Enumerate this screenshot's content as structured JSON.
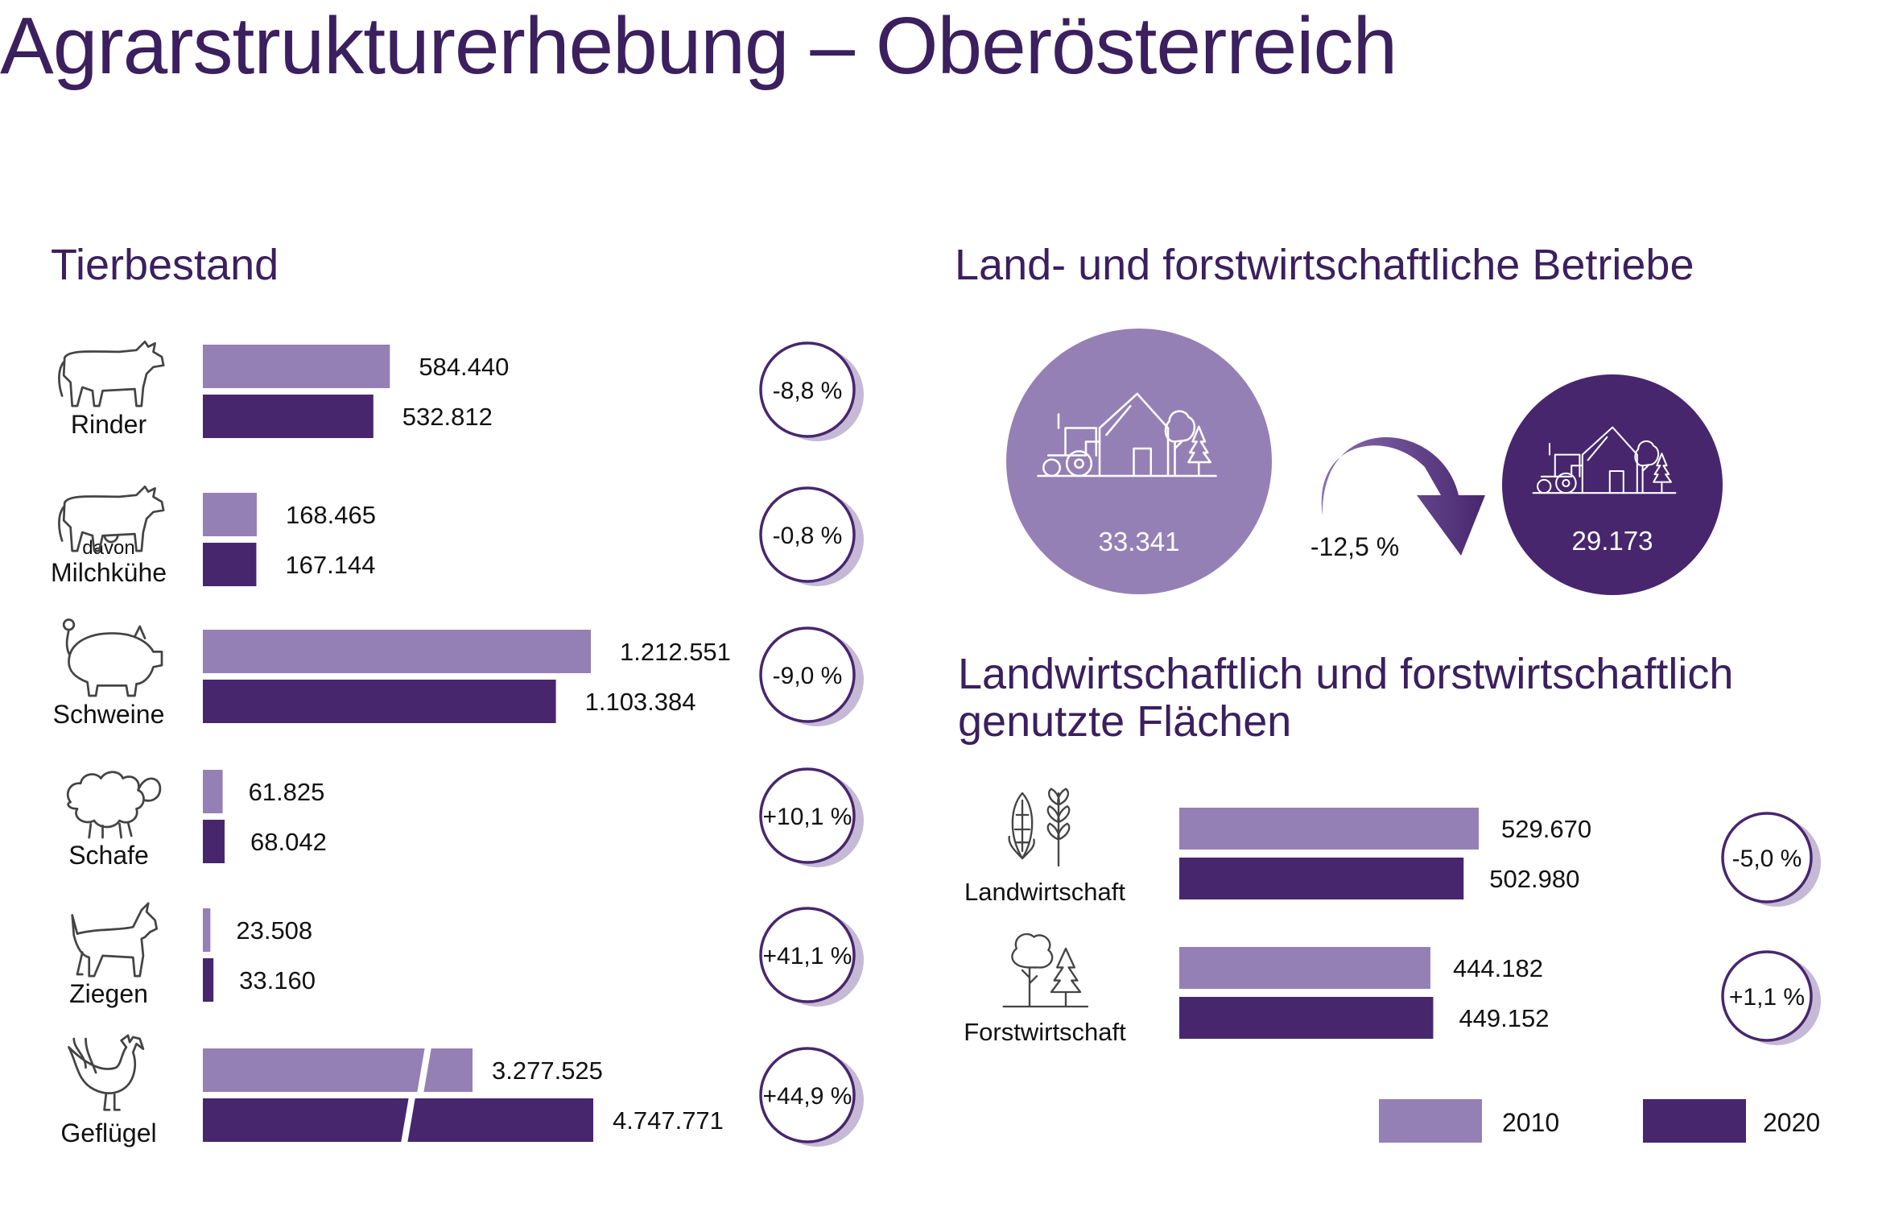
{
  "title": "Agrarstrukturerhebung – Oberösterreich",
  "colors": {
    "y2010": "#9580b5",
    "y2020": "#47266e",
    "text": "#111111",
    "title": "#3b1f5e",
    "icon": "#444444"
  },
  "chart_data": [
    {
      "type": "bar",
      "title": "Tierbestand",
      "orientation": "horizontal",
      "categories": [
        "Rinder",
        "davon Milchkühe",
        "Schweine",
        "Schafe",
        "Ziegen",
        "Geflügel"
      ],
      "category_labels": [
        {
          "main": "Rinder",
          "sub": ""
        },
        {
          "main": "Milchkühe",
          "sub": "davon"
        },
        {
          "main": "Schweine",
          "sub": ""
        },
        {
          "main": "Schafe",
          "sub": ""
        },
        {
          "main": "Ziegen",
          "sub": ""
        },
        {
          "main": "Geflügel",
          "sub": ""
        }
      ],
      "icons": [
        "cow-icon",
        "dairy-cow-icon",
        "pig-icon",
        "sheep-icon",
        "goat-icon",
        "chicken-icon"
      ],
      "series": [
        {
          "name": "2010",
          "values": [
            584440,
            168465,
            1212551,
            61825,
            23508,
            3277525
          ],
          "labels": [
            "584.440",
            "168.465",
            "1.212.551",
            "61.825",
            "23.508",
            "3.277.525"
          ]
        },
        {
          "name": "2020",
          "values": [
            532812,
            167144,
            1103384,
            68042,
            33160,
            4747771
          ],
          "labels": [
            "532.812",
            "167.144",
            "1.103.384",
            "68.042",
            "33.160",
            "4.747.771"
          ]
        }
      ],
      "changes": [
        "-8,8 %",
        "-0,8 %",
        "-9,0 %",
        "+10,1 %",
        "+41,1 %",
        "+44,9 %"
      ],
      "axis_break": "Geflügel"
    },
    {
      "type": "table",
      "title": "Land- und forstwirtschaftliche Betriebe",
      "values": [
        {
          "year": "2010",
          "value": 33341,
          "label": "33.341"
        },
        {
          "year": "2020",
          "value": 29173,
          "label": "29.173"
        }
      ],
      "change": "-12,5 %",
      "icons": [
        "farm-icon",
        "farm-icon"
      ]
    },
    {
      "type": "bar",
      "title": "Landwirtschaftlich und forstwirtschaftlich genutzte Flächen",
      "orientation": "horizontal",
      "categories": [
        "Landwirtschaft",
        "Forstwirtschaft"
      ],
      "icons": [
        "crops-icon",
        "trees-icon"
      ],
      "series": [
        {
          "name": "2010",
          "values": [
            529670,
            444182
          ],
          "labels": [
            "529.670",
            "444.182"
          ]
        },
        {
          "name": "2020",
          "values": [
            502980,
            449152
          ],
          "labels": [
            "502.980",
            "449.152"
          ]
        }
      ],
      "changes": [
        "-5,0 %",
        "+1,1 %"
      ],
      "legend": {
        "position": "bottom-right",
        "entries": [
          "2010",
          "2020"
        ]
      }
    }
  ]
}
